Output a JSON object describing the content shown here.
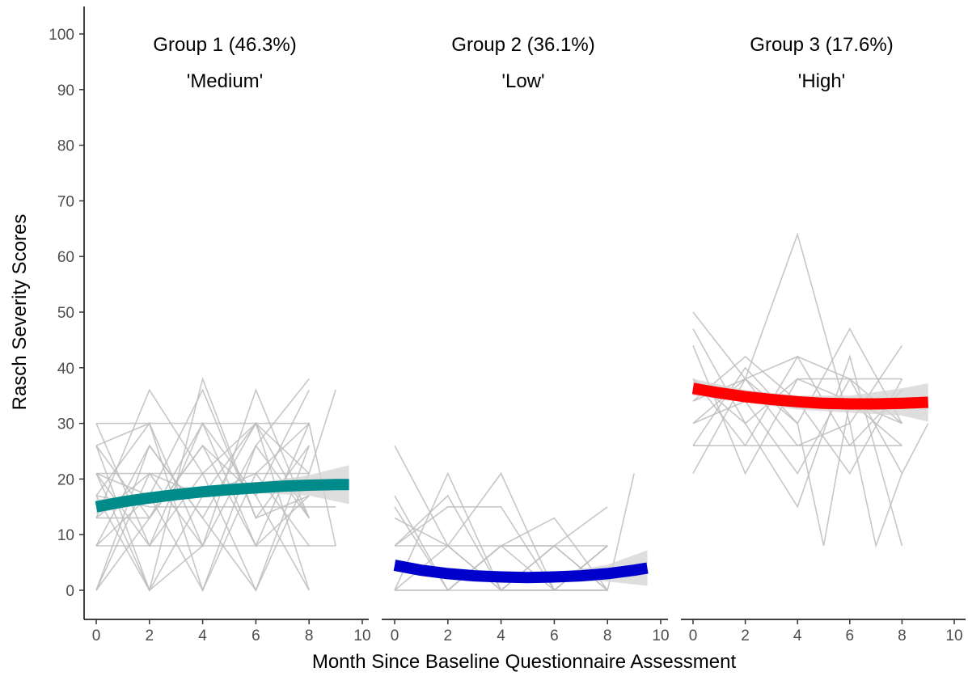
{
  "chart_data": {
    "type": "line",
    "xlabel": "Month Since Baseline Questionnaire Assessment",
    "ylabel": "Rasch Severity Scores",
    "ylim": [
      0,
      100
    ],
    "yticks": [
      0,
      10,
      20,
      30,
      40,
      50,
      60,
      70,
      80,
      90,
      100
    ],
    "xlim": [
      0,
      10
    ],
    "xticks": [
      0,
      2,
      4,
      6,
      8,
      10
    ],
    "grid": false,
    "colors": {
      "individual": "#bdbdbd",
      "ribbon": "#d3d3d3",
      "group1": "#008b8b",
      "group2": "#0000cd",
      "group3": "#ff0000"
    },
    "panels": [
      {
        "title_line1": "Group 1 (46.3%)",
        "title_line2": "'Medium'",
        "trend": {
          "x": [
            0,
            1,
            2,
            3,
            4,
            5,
            6,
            7,
            8,
            9,
            9.5
          ],
          "y": [
            15.0,
            15.9,
            16.6,
            17.2,
            17.7,
            18.1,
            18.4,
            18.7,
            18.9,
            19.0,
            19.0
          ]
        },
        "ribbon": {
          "x": [
            0,
            2,
            4,
            6,
            8,
            9.5
          ],
          "lower": [
            13.8,
            15.8,
            16.9,
            17.5,
            17.0,
            15.5
          ],
          "upper": [
            16.3,
            17.5,
            18.6,
            19.3,
            20.7,
            22.5
          ]
        },
        "individual_lines": [
          [
            [
              0,
              30
            ],
            [
              2,
              30
            ],
            [
              4,
              8
            ]
          ],
          [
            [
              0,
              26
            ],
            [
              2,
              13
            ],
            [
              4,
              30
            ],
            [
              6,
              8
            ],
            [
              8,
              17
            ]
          ],
          [
            [
              0,
              21
            ],
            [
              2,
              21
            ],
            [
              4,
              21
            ],
            [
              6,
              21
            ],
            [
              8,
              21
            ]
          ],
          [
            [
              0,
              8
            ],
            [
              2,
              8
            ],
            [
              4,
              8
            ],
            [
              6,
              8
            ],
            [
              8,
              8
            ],
            [
              9,
              8
            ]
          ],
          [
            [
              0,
              0
            ],
            [
              2,
              26
            ],
            [
              4,
              13
            ],
            [
              6,
              0
            ],
            [
              8,
              21
            ]
          ],
          [
            [
              0,
              17
            ],
            [
              2,
              0
            ],
            [
              4,
              38
            ],
            [
              6,
              13
            ],
            [
              8,
              26
            ]
          ],
          [
            [
              0,
              13
            ],
            [
              2,
              36
            ],
            [
              4,
              21
            ],
            [
              6,
              30
            ],
            [
              8,
              13
            ]
          ],
          [
            [
              0,
              8
            ],
            [
              2,
              17
            ],
            [
              4,
              0
            ],
            [
              6,
              26
            ],
            [
              8,
              38
            ]
          ],
          [
            [
              0,
              21
            ],
            [
              2,
              8
            ],
            [
              4,
              30
            ],
            [
              6,
              17
            ],
            [
              8,
              0
            ]
          ],
          [
            [
              0,
              26
            ],
            [
              2,
              0
            ],
            [
              4,
              17
            ],
            [
              6,
              30
            ],
            [
              8,
              21
            ],
            [
              9,
              36
            ]
          ],
          [
            [
              0,
              13
            ],
            [
              2,
              13
            ],
            [
              4,
              26
            ],
            [
              6,
              8
            ],
            [
              8,
              30
            ]
          ],
          [
            [
              0,
              0
            ],
            [
              2,
              21
            ],
            [
              4,
              8
            ],
            [
              6,
              36
            ],
            [
              8,
              13
            ]
          ],
          [
            [
              0,
              17
            ],
            [
              2,
              30
            ],
            [
              4,
              0
            ],
            [
              6,
              21
            ],
            [
              8,
              8
            ]
          ],
          [
            [
              0,
              30
            ],
            [
              2,
              8
            ],
            [
              4,
              21
            ],
            [
              6,
              0
            ],
            [
              8,
              26
            ]
          ],
          [
            [
              0,
              21
            ],
            [
              2,
              17
            ],
            [
              4,
              36
            ],
            [
              6,
              13
            ],
            [
              8,
              17
            ]
          ],
          [
            [
              0,
              8
            ],
            [
              2,
              26
            ],
            [
              4,
              13
            ],
            [
              6,
              30
            ],
            [
              8,
              0
            ]
          ],
          [
            [
              0,
              13
            ],
            [
              2,
              21
            ],
            [
              4,
              17
            ],
            [
              6,
              21
            ],
            [
              8,
              30
            ],
            [
              9,
              8
            ]
          ],
          [
            [
              0,
              26
            ],
            [
              2,
              30
            ],
            [
              4,
              30
            ],
            [
              6,
              30
            ],
            [
              8,
              30
            ]
          ],
          [
            [
              0,
              17
            ],
            [
              2,
              15
            ],
            [
              4,
              15
            ],
            [
              6,
              15
            ],
            [
              8,
              15
            ],
            [
              9,
              15
            ]
          ],
          [
            [
              0,
              0
            ],
            [
              2,
              13
            ],
            [
              4,
              26
            ],
            [
              6,
              17
            ],
            [
              8,
              36
            ]
          ],
          [
            [
              0,
              21
            ],
            [
              2,
              0
            ],
            [
              4,
              8
            ],
            [
              6,
              26
            ],
            [
              8,
              13
            ]
          ]
        ]
      },
      {
        "title_line1": "Group 2 (36.1%)",
        "title_line2": "'Low'",
        "trend": {
          "x": [
            0,
            1,
            2,
            3,
            4,
            5,
            6,
            7,
            8,
            9,
            9.5
          ],
          "y": [
            4.5,
            3.6,
            3.0,
            2.6,
            2.4,
            2.3,
            2.4,
            2.6,
            3.0,
            3.6,
            4.0
          ]
        },
        "ribbon": {
          "x": [
            0,
            2,
            4,
            6,
            8,
            9.5
          ],
          "lower": [
            3.5,
            2.3,
            1.8,
            1.8,
            1.6,
            0.8
          ],
          "upper": [
            5.5,
            3.8,
            3.1,
            3.1,
            4.6,
            7.2
          ]
        },
        "individual_lines": [
          [
            [
              0,
              26
            ],
            [
              2,
              8
            ],
            [
              4,
              0
            ],
            [
              6,
              0
            ],
            [
              8,
              0
            ]
          ],
          [
            [
              0,
              15
            ],
            [
              2,
              0
            ],
            [
              4,
              8
            ],
            [
              6,
              0
            ],
            [
              8,
              8
            ]
          ],
          [
            [
              0,
              8
            ],
            [
              2,
              8
            ],
            [
              4,
              8
            ],
            [
              6,
              8
            ],
            [
              8,
              8
            ]
          ],
          [
            [
              0,
              0
            ],
            [
              2,
              0
            ],
            [
              4,
              0
            ],
            [
              6,
              0
            ],
            [
              8,
              0
            ]
          ],
          [
            [
              0,
              8
            ],
            [
              2,
              17
            ],
            [
              4,
              0
            ],
            [
              6,
              8
            ],
            [
              8,
              0
            ]
          ],
          [
            [
              0,
              0
            ],
            [
              2,
              8
            ],
            [
              4,
              21
            ],
            [
              6,
              0
            ],
            [
              8,
              8
            ]
          ],
          [
            [
              0,
              17
            ],
            [
              2,
              0
            ],
            [
              4,
              8
            ],
            [
              6,
              13
            ],
            [
              8,
              0
            ]
          ],
          [
            [
              0,
              8
            ],
            [
              2,
              15
            ],
            [
              4,
              15
            ],
            [
              6,
              0
            ],
            [
              8,
              8
            ]
          ],
          [
            [
              0,
              0
            ],
            [
              2,
              21
            ],
            [
              4,
              0
            ],
            [
              6,
              8
            ],
            [
              8,
              15
            ]
          ],
          [
            [
              0,
              13
            ],
            [
              2,
              8
            ],
            [
              4,
              0
            ],
            [
              6,
              0
            ],
            [
              8,
              0
            ],
            [
              9,
              21
            ]
          ],
          [
            [
              0,
              0
            ],
            [
              2,
              0
            ],
            [
              4,
              8
            ],
            [
              6,
              8
            ],
            [
              8,
              0
            ]
          ]
        ]
      },
      {
        "title_line1": "Group 3 (17.6%)",
        "title_line2": "'High'",
        "trend": {
          "x": [
            0,
            1,
            2,
            3,
            4,
            5,
            6,
            7,
            8,
            9
          ],
          "y": [
            36.3,
            35.5,
            34.8,
            34.3,
            33.9,
            33.6,
            33.5,
            33.5,
            33.6,
            33.8
          ]
        },
        "ribbon": {
          "x": [
            0,
            2,
            4,
            6,
            8,
            9
          ],
          "lower": [
            35.0,
            33.8,
            32.5,
            31.9,
            31.4,
            30.3
          ],
          "upper": [
            38.0,
            36.0,
            35.0,
            35.0,
            36.3,
            37.2
          ]
        },
        "individual_lines": [
          [
            [
              0,
              50
            ],
            [
              2,
              38
            ],
            [
              4,
              30
            ],
            [
              6,
              47
            ],
            [
              8,
              30
            ]
          ],
          [
            [
              0,
              21
            ],
            [
              2,
              38
            ],
            [
              4,
              64
            ],
            [
              6,
              30
            ],
            [
              8,
              44
            ]
          ],
          [
            [
              0,
              30
            ],
            [
              2,
              38
            ],
            [
              4,
              42
            ],
            [
              6,
              38
            ],
            [
              8,
              38
            ]
          ],
          [
            [
              0,
              26
            ],
            [
              2,
              26
            ],
            [
              4,
              26
            ],
            [
              6,
              26
            ],
            [
              8,
              26
            ]
          ],
          [
            [
              0,
              38
            ],
            [
              2,
              30
            ],
            [
              4,
              15
            ],
            [
              6,
              42
            ],
            [
              8,
              8
            ]
          ],
          [
            [
              0,
              34
            ],
            [
              2,
              42
            ],
            [
              4,
              34
            ],
            [
              6,
              21
            ],
            [
              8,
              38
            ]
          ],
          [
            [
              0,
              44
            ],
            [
              2,
              21
            ],
            [
              4,
              38
            ],
            [
              6,
              34
            ],
            [
              8,
              26
            ]
          ],
          [
            [
              0,
              30
            ],
            [
              2,
              34
            ],
            [
              4,
              21
            ],
            [
              6,
              38
            ],
            [
              8,
              30
            ]
          ],
          [
            [
              0,
              38
            ],
            [
              2,
              26
            ],
            [
              4,
              42
            ],
            [
              6,
              26
            ],
            [
              8,
              36
            ]
          ],
          [
            [
              0,
              26
            ],
            [
              2,
              40
            ],
            [
              4,
              30
            ],
            [
              5,
              8
            ],
            [
              6,
              34
            ],
            [
              8,
              30
            ]
          ],
          [
            [
              0,
              47
            ],
            [
              2,
              30
            ],
            [
              4,
              38
            ],
            [
              6,
              38
            ],
            [
              8,
              21
            ],
            [
              9,
              30
            ]
          ],
          [
            [
              0,
              34
            ],
            [
              2,
              38
            ],
            [
              4,
              26
            ],
            [
              6,
              30
            ],
            [
              7,
              8
            ],
            [
              8,
              21
            ]
          ]
        ]
      }
    ]
  }
}
